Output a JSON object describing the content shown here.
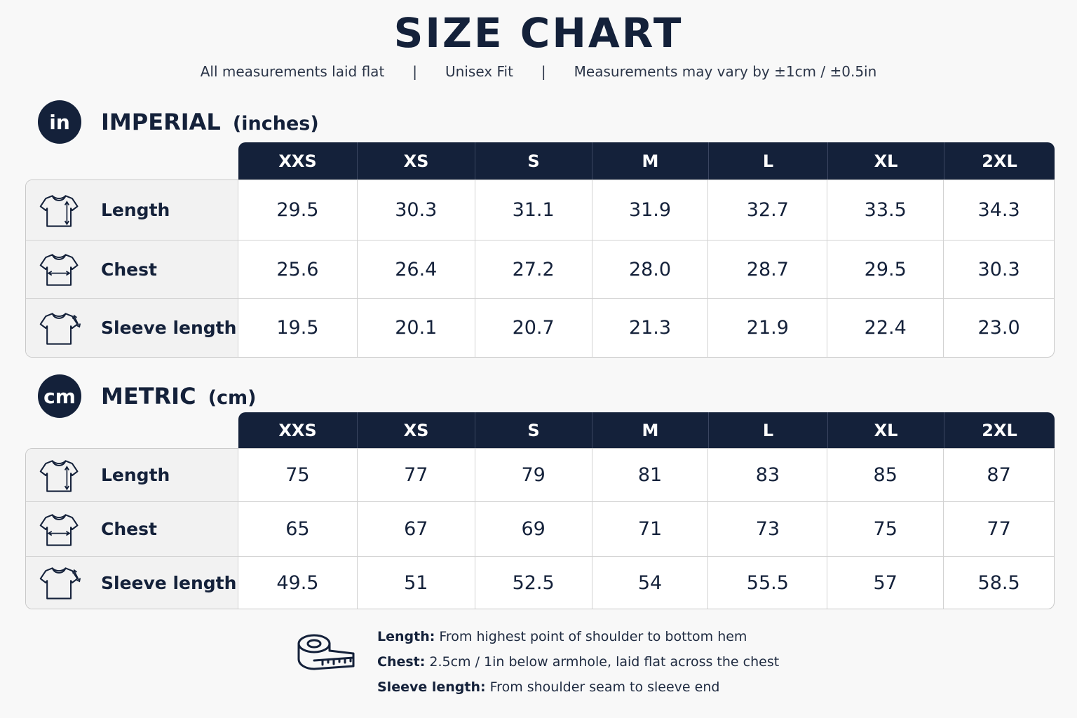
{
  "title": "SIZE CHART",
  "subtitle": {
    "items": [
      "All measurements laid flat",
      "Unisex Fit",
      "Measurements may vary by ±1cm / ±0.5in"
    ],
    "separator": "|"
  },
  "colors": {
    "navy": "#14213a",
    "label_bg": "#f2f2f2",
    "border": "#d2d2d2"
  },
  "sizes": [
    "XXS",
    "XS",
    "S",
    "M",
    "L",
    "XL",
    "2XL"
  ],
  "imperial": {
    "badge": "in",
    "title": "IMPERIAL",
    "unit": "(inches)",
    "rows": [
      {
        "icon": "tshirt-length-icon",
        "label": "Length",
        "values": [
          "29.5",
          "30.3",
          "31.1",
          "31.9",
          "32.7",
          "33.5",
          "34.3"
        ]
      },
      {
        "icon": "tshirt-chest-icon",
        "label": "Chest",
        "values": [
          "25.6",
          "26.4",
          "27.2",
          "28.0",
          "28.7",
          "29.5",
          "30.3"
        ]
      },
      {
        "icon": "tshirt-sleeve-icon",
        "label": "Sleeve length",
        "values": [
          "19.5",
          "20.1",
          "20.7",
          "21.3",
          "21.9",
          "22.4",
          "23.0"
        ]
      }
    ]
  },
  "metric": {
    "badge": "cm",
    "title": "METRIC",
    "unit": "(cm)",
    "rows": [
      {
        "icon": "tshirt-length-icon",
        "label": "Length",
        "values": [
          "75",
          "77",
          "79",
          "81",
          "83",
          "85",
          "87"
        ]
      },
      {
        "icon": "tshirt-chest-icon",
        "label": "Chest",
        "values": [
          "65",
          "67",
          "69",
          "71",
          "73",
          "75",
          "77"
        ]
      },
      {
        "icon": "tshirt-sleeve-icon",
        "label": "Sleeve length",
        "values": [
          "49.5",
          "51",
          "52.5",
          "54",
          "55.5",
          "57",
          "58.5"
        ]
      }
    ]
  },
  "notes": [
    {
      "term": "Length:",
      "text": " From highest point of shoulder to bottom hem"
    },
    {
      "term": "Chest:",
      "text": " 2.5cm / 1in below armhole, laid flat across the chest"
    },
    {
      "term": "Sleeve length:",
      "text": " From shoulder seam to sleeve end"
    }
  ],
  "notes_icon": "measuring-tape-icon"
}
